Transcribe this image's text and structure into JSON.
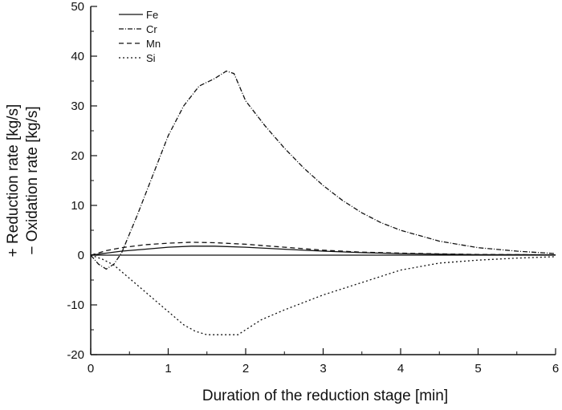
{
  "chart_data": {
    "type": "line",
    "title": "",
    "xlabel": "Duration of the reduction stage [min]",
    "ylabel_lines": [
      "+ Reduction rate [kg/s]",
      "− Oxidation rate [kg/s]"
    ],
    "xlim": [
      0,
      6
    ],
    "ylim": [
      -20,
      50
    ],
    "xticks": [
      0,
      1,
      2,
      3,
      4,
      5,
      6
    ],
    "yticks": [
      -20,
      -10,
      0,
      10,
      20,
      30,
      40,
      50
    ],
    "grid": false,
    "legend_position": "top-left",
    "series": [
      {
        "name": "Fe",
        "style": "solid",
        "x": [
          0,
          0.2,
          0.4,
          0.7,
          1.0,
          1.3,
          1.6,
          2.0,
          2.5,
          3.0,
          3.5,
          4.0,
          4.5,
          5.0,
          5.5,
          6.0
        ],
        "y": [
          0,
          0.4,
          0.8,
          1.2,
          1.6,
          1.8,
          1.8,
          1.6,
          1.2,
          0.8,
          0.5,
          0.3,
          0.2,
          0.1,
          0.1,
          0.05
        ]
      },
      {
        "name": "Cr",
        "style": "dashdot",
        "x": [
          0,
          0.1,
          0.2,
          0.3,
          0.4,
          0.6,
          0.8,
          1.0,
          1.2,
          1.4,
          1.6,
          1.75,
          1.85,
          2.0,
          2.25,
          2.5,
          2.75,
          3.0,
          3.25,
          3.5,
          3.75,
          4.0,
          4.5,
          5.0,
          5.5,
          6.0
        ],
        "y": [
          0,
          -1.8,
          -2.8,
          -1.8,
          0.5,
          8,
          16,
          24,
          30,
          34,
          35.5,
          37,
          36.5,
          31,
          26,
          21.5,
          17.5,
          14,
          11,
          8.5,
          6.5,
          5,
          2.8,
          1.5,
          0.8,
          0.3
        ]
      },
      {
        "name": "Mn",
        "style": "dashed",
        "x": [
          0,
          0.2,
          0.4,
          0.7,
          1.0,
          1.3,
          1.6,
          2.0,
          2.5,
          3.0,
          3.5,
          4.0,
          4.5,
          5.0,
          5.5,
          6.0
        ],
        "y": [
          0,
          0.9,
          1.5,
          2.1,
          2.4,
          2.6,
          2.5,
          2.2,
          1.6,
          1.0,
          0.6,
          0.4,
          0.25,
          0.15,
          0.1,
          0.05
        ]
      },
      {
        "name": "Si",
        "style": "dotted",
        "x": [
          0,
          0.15,
          0.3,
          0.6,
          0.9,
          1.2,
          1.35,
          1.5,
          1.9,
          2.2,
          2.5,
          3.0,
          3.5,
          4.0,
          4.5,
          5.0,
          5.5,
          6.0
        ],
        "y": [
          0,
          -0.8,
          -2,
          -6,
          -10,
          -14,
          -15.3,
          -16,
          -16,
          -13,
          -11,
          -8,
          -5.5,
          -3,
          -1.6,
          -1,
          -0.6,
          -0.3
        ]
      }
    ]
  }
}
